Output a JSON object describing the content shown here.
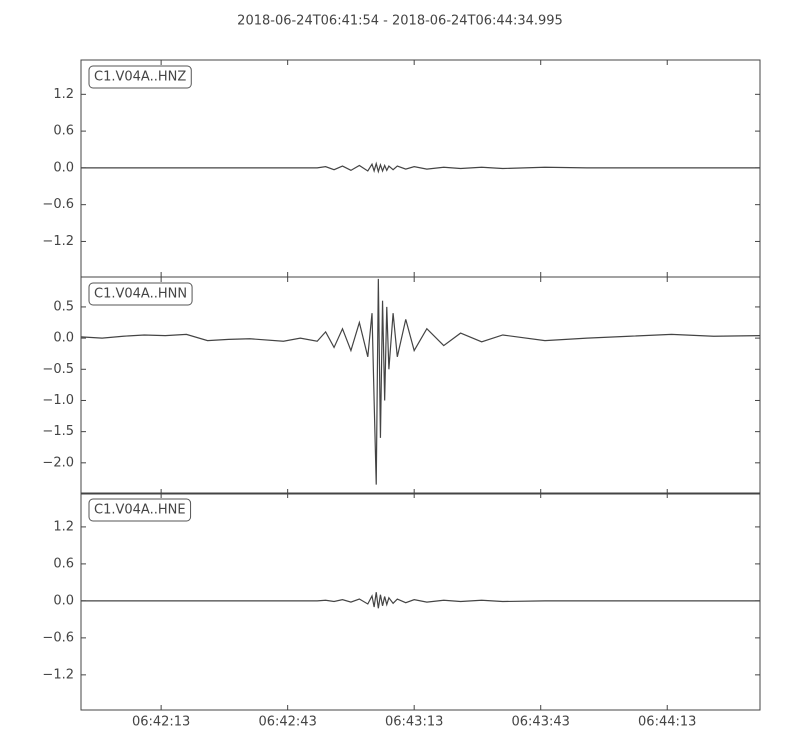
{
  "title": "2018-06-24T06:41:54  -  2018-06-24T06:44:34.995",
  "chart_data": [
    {
      "type": "line",
      "x": [
        "06:41:54",
        "06:41:59",
        "06:42:04",
        "06:42:09",
        "06:42:14",
        "06:42:19",
        "06:42:24",
        "06:42:29",
        "06:42:34",
        "06:42:42",
        "06:42:46",
        "06:42:50",
        "06:42:52",
        "06:42:54",
        "06:42:56",
        "06:42:58",
        "06:43:00",
        "06:43:02",
        "06:43:03",
        "06:43:03.5",
        "06:43:04",
        "06:43:04.5",
        "06:43:05",
        "06:43:05.5",
        "06:43:06",
        "06:43:06.5",
        "06:43:07",
        "06:43:08",
        "06:43:09",
        "06:43:11",
        "06:43:13",
        "06:43:16",
        "06:43:20",
        "06:43:24",
        "06:43:29",
        "06:43:34",
        "06:43:44",
        "06:43:54",
        "06:44:04",
        "06:44:14",
        "06:44:24",
        "06:44:34.995"
      ],
      "series": [
        {
          "name": "C1.V04A..HNZ",
          "color": "#444444",
          "values": [
            0,
            0,
            0,
            0,
            0,
            0,
            0,
            0,
            0,
            0,
            0,
            0,
            0.02,
            -0.03,
            0.03,
            -0.04,
            0.04,
            -0.05,
            0.06,
            -0.05,
            0.07,
            -0.06,
            0.05,
            -0.05,
            0.04,
            -0.04,
            0.03,
            -0.03,
            0.03,
            -0.02,
            0.02,
            -0.02,
            0.01,
            -0.01,
            0.01,
            -0.01,
            0.01,
            0,
            0,
            0,
            0,
            0
          ]
        }
      ],
      "xlim": [
        "06:41:54",
        "06:44:34.995"
      ],
      "xticks": [
        "06:42:13",
        "06:42:43",
        "06:43:13",
        "06:43:43",
        "06:44:13"
      ],
      "ylim": [
        -1.78,
        1.76
      ],
      "yticks": [
        1.2,
        0.6,
        {
          "value": 0,
          "label": "0.0"
        },
        {
          "value": -0.6,
          "label": "−0.6"
        },
        {
          "value": -1.2,
          "label": "−1.2"
        }
      ]
    },
    {
      "type": "line",
      "x": [
        "06:41:54",
        "06:41:59",
        "06:42:04",
        "06:42:09",
        "06:42:14",
        "06:42:19",
        "06:42:24",
        "06:42:29",
        "06:42:34",
        "06:42:42",
        "06:42:46",
        "06:42:50",
        "06:42:52",
        "06:42:54",
        "06:42:56",
        "06:42:58",
        "06:43:00",
        "06:43:02",
        "06:43:03",
        "06:43:03.5",
        "06:43:04",
        "06:43:04.5",
        "06:43:05",
        "06:43:05.5",
        "06:43:06",
        "06:43:06.5",
        "06:43:07",
        "06:43:08",
        "06:43:09",
        "06:43:11",
        "06:43:13",
        "06:43:16",
        "06:43:20",
        "06:43:24",
        "06:43:29",
        "06:43:34",
        "06:43:44",
        "06:43:54",
        "06:44:04",
        "06:44:14",
        "06:44:24",
        "06:44:34.995"
      ],
      "series": [
        {
          "name": "C1.V04A..HNN",
          "color": "#444444",
          "values": [
            0.02,
            0.0,
            0.03,
            0.05,
            0.04,
            0.06,
            -0.04,
            -0.02,
            -0.01,
            -0.05,
            0.0,
            -0.05,
            0.1,
            -0.15,
            0.15,
            -0.2,
            0.25,
            -0.3,
            0.4,
            -1.0,
            -2.35,
            0.95,
            -1.6,
            0.6,
            -1.0,
            0.5,
            -0.5,
            0.4,
            -0.3,
            0.3,
            -0.2,
            0.15,
            -0.12,
            0.08,
            -0.06,
            0.05,
            -0.04,
            0.0,
            0.03,
            0.06,
            0.03,
            0.04
          ]
        }
      ],
      "xlim": [
        "06:41:54",
        "06:44:34.995"
      ],
      "xticks": [
        "06:42:13",
        "06:42:43",
        "06:43:13",
        "06:43:43",
        "06:44:13"
      ],
      "ylim": [
        -2.5,
        0.98
      ],
      "yticks": [
        0.5,
        {
          "value": 0,
          "label": "0.0"
        },
        {
          "value": -0.5,
          "label": "−0.5"
        },
        {
          "value": -1,
          "label": "−1.0"
        },
        {
          "value": -1.5,
          "label": "−1.5"
        },
        {
          "value": -2,
          "label": "−2.0"
        }
      ]
    },
    {
      "type": "line",
      "x": [
        "06:41:54",
        "06:41:59",
        "06:42:04",
        "06:42:09",
        "06:42:14",
        "06:42:19",
        "06:42:24",
        "06:42:29",
        "06:42:34",
        "06:42:42",
        "06:42:46",
        "06:42:50",
        "06:42:52",
        "06:42:54",
        "06:42:56",
        "06:42:58",
        "06:43:00",
        "06:43:02",
        "06:43:03",
        "06:43:03.5",
        "06:43:04",
        "06:43:04.5",
        "06:43:05",
        "06:43:05.5",
        "06:43:06",
        "06:43:06.5",
        "06:43:07",
        "06:43:08",
        "06:43:09",
        "06:43:11",
        "06:43:13",
        "06:43:16",
        "06:43:20",
        "06:43:24",
        "06:43:29",
        "06:43:34",
        "06:43:44",
        "06:43:54",
        "06:44:04",
        "06:44:14",
        "06:44:24",
        "06:44:34.995"
      ],
      "series": [
        {
          "name": "C1.V04A..HNE",
          "color": "#444444",
          "values": [
            0,
            0,
            0,
            0,
            0,
            0,
            0,
            0,
            0,
            0,
            0,
            0,
            0.01,
            -0.01,
            0.02,
            -0.02,
            0.03,
            -0.05,
            0.08,
            -0.1,
            0.14,
            -0.12,
            0.1,
            -0.08,
            0.07,
            -0.06,
            0.05,
            -0.04,
            0.03,
            -0.03,
            0.02,
            -0.02,
            0.01,
            -0.01,
            0.01,
            -0.01,
            0,
            0,
            0,
            0,
            0,
            0
          ]
        }
      ],
      "xlim": [
        "06:41:54",
        "06:44:34.995"
      ],
      "xticks": [
        "06:42:13",
        "06:42:43",
        "06:43:13",
        "06:43:43",
        "06:44:13"
      ],
      "ylim": [
        -1.77,
        1.75
      ],
      "yticks": [
        1.2,
        0.6,
        {
          "value": 0,
          "label": "0.0"
        },
        {
          "value": -0.6,
          "label": "−0.6"
        },
        {
          "value": -1.2,
          "label": "−1.2"
        }
      ]
    }
  ]
}
